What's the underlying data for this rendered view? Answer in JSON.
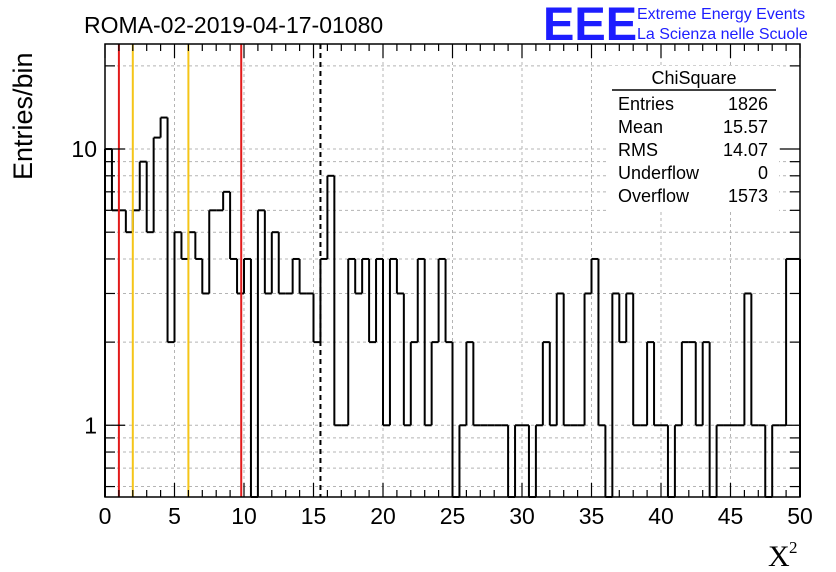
{
  "chart_data": {
    "type": "bar",
    "title": "ROMA-02-2019-04-17-01080",
    "xlabel": "X",
    "xlabel_superscript": "2",
    "ylabel": "Entries/bin",
    "xlim": [
      0,
      50
    ],
    "ylim": [
      0.55,
      24
    ],
    "yscale": "log",
    "grid": true,
    "x_ticks": [
      "0",
      "5",
      "10",
      "15",
      "20",
      "25",
      "30",
      "35",
      "40",
      "45",
      "50"
    ],
    "y_ticks": [
      {
        "value": 1,
        "label": "1"
      },
      {
        "value": 10,
        "label": "10"
      }
    ],
    "bin_width": 0.5,
    "bin_start": 0,
    "values": [
      10,
      6,
      5,
      6,
      9,
      6,
      5,
      6,
      8,
      9,
      6,
      5,
      6,
      11,
      7,
      4,
      5,
      6,
      4,
      5,
      6,
      7,
      5,
      4,
      4,
      6,
      6,
      5,
      4,
      6,
      5,
      4,
      4,
      3,
      3,
      5,
      2,
      4,
      6,
      5,
      4,
      4,
      2,
      0,
      3,
      6,
      3,
      3,
      5,
      6,
      3,
      3,
      4,
      3,
      3,
      3,
      3,
      2,
      4,
      2,
      2,
      4,
      4,
      3,
      1,
      1,
      1,
      1,
      4,
      3,
      2,
      1,
      4,
      1,
      2,
      5,
      2,
      1,
      1,
      0,
      4,
      2,
      0,
      0,
      3,
      1,
      0,
      0,
      2,
      1,
      2,
      1,
      1,
      0,
      1,
      1,
      1,
      0,
      0,
      1,
      2,
      1,
      1,
      1,
      1,
      1,
      1,
      2,
      1,
      1,
      2,
      1,
      2,
      1,
      1,
      2,
      3,
      1,
      2,
      0,
      3,
      0,
      1,
      1,
      3,
      2,
      3,
      1,
      2,
      1,
      0,
      1,
      1,
      1,
      1,
      2,
      1,
      0,
      0,
      1,
      2,
      1,
      1,
      2,
      1,
      2,
      1,
      2,
      1,
      3,
      2,
      1,
      2,
      1,
      1,
      2,
      1,
      1,
      0,
      0,
      1,
      1,
      1,
      1,
      1,
      1,
      2,
      2,
      3,
      1,
      2,
      0,
      3,
      1,
      1,
      0,
      1,
      1,
      1,
      3,
      1,
      2,
      1,
      0,
      1,
      2,
      1,
      1,
      2,
      2,
      1,
      1,
      2,
      3,
      1,
      3,
      1,
      1,
      4,
      1,
      1,
      2,
      3,
      2,
      1,
      3,
      1,
      1,
      0,
      2,
      1,
      1,
      0,
      1,
      2,
      1,
      2,
      1,
      0,
      1,
      0,
      1,
      0,
      3,
      2,
      2,
      2,
      2,
      1,
      0,
      0,
      1,
      1,
      0,
      1,
      0,
      0,
      1,
      0,
      1,
      2,
      1,
      0,
      1,
      0,
      3,
      1,
      1,
      2,
      1,
      0,
      3,
      0,
      0,
      1,
      1,
      0,
      1,
      3,
      0,
      0,
      1,
      1,
      0,
      1,
      0,
      1,
      0,
      0,
      0,
      0,
      0,
      1,
      0,
      1,
      0,
      1,
      0,
      0,
      1,
      0,
      1,
      0,
      0,
      1,
      0,
      0,
      1,
      1,
      0,
      0,
      1,
      1,
      0,
      0,
      0,
      1,
      0,
      1,
      0,
      0,
      0,
      1,
      1,
      0,
      1,
      0,
      0,
      1,
      0,
      0,
      0,
      0,
      0,
      0,
      0,
      1,
      1,
      1,
      0,
      1,
      0,
      0,
      0,
      0,
      0,
      1,
      0,
      1,
      0,
      1,
      0,
      0,
      0,
      0,
      0,
      0,
      0,
      0,
      0,
      1,
      0,
      0,
      0,
      0,
      1,
      0,
      0,
      0,
      0,
      0,
      1,
      0,
      1,
      0,
      0,
      0,
      0,
      0,
      1,
      1,
      0,
      0,
      1,
      0,
      0,
      0,
      1,
      0,
      0,
      0,
      0,
      0,
      0,
      0,
      0,
      0,
      0,
      0,
      0,
      1,
      0,
      0,
      1,
      1,
      0,
      1,
      0,
      0,
      0,
      0,
      0,
      0,
      0,
      1,
      0,
      0,
      0,
      0,
      1,
      1,
      0,
      0,
      0,
      0,
      0,
      0,
      0,
      1,
      0,
      0,
      0,
      1,
      0,
      1,
      0,
      0,
      0,
      0,
      0,
      0,
      0,
      0,
      0,
      0,
      0,
      0,
      1,
      1,
      0,
      0,
      1,
      0,
      0,
      0,
      0,
      0,
      1,
      0,
      0,
      0,
      0,
      0,
      0,
      1,
      0,
      0,
      0,
      0,
      0,
      1,
      0,
      0,
      0,
      0,
      0,
      0,
      0,
      0,
      0,
      0,
      1,
      0,
      0,
      0,
      0,
      0,
      0,
      0,
      0,
      0,
      1,
      0,
      0,
      0,
      0,
      0,
      0,
      0,
      0,
      0,
      0,
      0,
      1,
      0,
      0,
      0,
      0,
      0,
      0,
      0,
      0,
      0,
      0,
      0,
      0,
      0,
      0,
      0,
      0,
      0,
      1,
      0,
      0,
      0,
      0,
      0,
      0,
      0,
      0,
      0,
      0,
      0,
      1,
      0,
      0,
      0,
      0,
      0,
      0,
      0,
      1,
      0,
      0,
      0,
      0,
      0,
      0,
      0,
      0,
      0,
      0,
      0,
      0,
      0,
      0,
      0,
      0,
      0,
      0,
      0,
      0,
      0,
      0,
      0,
      0,
      0,
      1,
      0,
      0,
      0,
      0,
      0,
      0,
      0,
      0,
      0,
      0,
      0,
      0,
      0,
      0,
      0,
      0,
      0,
      0,
      0,
      0,
      0,
      1,
      0,
      0,
      0,
      0,
      0,
      0,
      0,
      0,
      0,
      0,
      0,
      0,
      0,
      0,
      0,
      0,
      0,
      0,
      0,
      0,
      0,
      0,
      0,
      0,
      0,
      0,
      0,
      0,
      0,
      0,
      0,
      0,
      0,
      0,
      0,
      0,
      0,
      0
    ],
    "vertical_lines": [
      {
        "x": 1.0,
        "color": "#e21a1a",
        "style": "solid"
      },
      {
        "x": 2.0,
        "color": "#f5c518",
        "style": "solid"
      },
      {
        "x": 6.0,
        "color": "#f5c518",
        "style": "solid"
      },
      {
        "x": 9.8,
        "color": "#e21a1a",
        "style": "solid"
      },
      {
        "x": 15.5,
        "color": "#000000",
        "style": "dashed"
      }
    ],
    "histogram_bins": [
      {
        "lo": 0.0,
        "hi": 0.5,
        "v": 10
      },
      {
        "lo": 0.5,
        "hi": 1.0,
        "v": 6
      },
      {
        "lo": 1.0,
        "hi": 1.5,
        "v": 6
      },
      {
        "lo": 1.5,
        "hi": 2.0,
        "v": 5
      },
      {
        "lo": 2.0,
        "hi": 2.5,
        "v": 6
      },
      {
        "lo": 2.5,
        "hi": 3.0,
        "v": 9
      },
      {
        "lo": 3.0,
        "hi": 3.5,
        "v": 5
      },
      {
        "lo": 3.5,
        "hi": 4.0,
        "v": 11
      },
      {
        "lo": 4.0,
        "hi": 4.5,
        "v": 13
      },
      {
        "lo": 4.5,
        "hi": 5.0,
        "v": 2
      },
      {
        "lo": 5.0,
        "hi": 5.5,
        "v": 5
      },
      {
        "lo": 5.5,
        "hi": 6.0,
        "v": 4
      },
      {
        "lo": 6.0,
        "hi": 6.5,
        "v": 5
      },
      {
        "lo": 6.5,
        "hi": 7.0,
        "v": 4
      },
      {
        "lo": 7.0,
        "hi": 7.5,
        "v": 3
      },
      {
        "lo": 7.5,
        "hi": 8.0,
        "v": 6
      },
      {
        "lo": 8.0,
        "hi": 8.5,
        "v": 6
      },
      {
        "lo": 8.5,
        "hi": 9.0,
        "v": 7
      },
      {
        "lo": 9.0,
        "hi": 9.5,
        "v": 4
      },
      {
        "lo": 9.5,
        "hi": 10.0,
        "v": 3
      },
      {
        "lo": 10.0,
        "hi": 10.5,
        "v": 4
      },
      {
        "lo": 10.5,
        "hi": 11.0,
        "v": 0
      },
      {
        "lo": 11.0,
        "hi": 11.5,
        "v": 6
      },
      {
        "lo": 11.5,
        "hi": 12.0,
        "v": 3
      },
      {
        "lo": 12.0,
        "hi": 12.5,
        "v": 5
      },
      {
        "lo": 12.5,
        "hi": 13.0,
        "v": 3
      },
      {
        "lo": 13.0,
        "hi": 13.5,
        "v": 3
      },
      {
        "lo": 13.5,
        "hi": 14.0,
        "v": 4
      },
      {
        "lo": 14.0,
        "hi": 14.5,
        "v": 3
      },
      {
        "lo": 14.5,
        "hi": 15.0,
        "v": 3
      },
      {
        "lo": 15.0,
        "hi": 15.5,
        "v": 2
      },
      {
        "lo": 15.5,
        "hi": 16.0,
        "v": 4
      },
      {
        "lo": 16.0,
        "hi": 16.5,
        "v": 8
      },
      {
        "lo": 16.5,
        "hi": 17.0,
        "v": 1
      },
      {
        "lo": 17.0,
        "hi": 17.5,
        "v": 1
      },
      {
        "lo": 17.5,
        "hi": 18.0,
        "v": 4
      },
      {
        "lo": 18.0,
        "hi": 18.5,
        "v": 3
      },
      {
        "lo": 18.5,
        "hi": 19.0,
        "v": 4
      },
      {
        "lo": 19.0,
        "hi": 19.5,
        "v": 2
      },
      {
        "lo": 19.5,
        "hi": 20.0,
        "v": 4
      },
      {
        "lo": 20.0,
        "hi": 20.5,
        "v": 1
      },
      {
        "lo": 20.5,
        "hi": 21.0,
        "v": 4
      },
      {
        "lo": 21.0,
        "hi": 21.5,
        "v": 3
      },
      {
        "lo": 21.5,
        "hi": 22.0,
        "v": 1
      },
      {
        "lo": 22.0,
        "hi": 22.5,
        "v": 2
      },
      {
        "lo": 22.5,
        "hi": 23.0,
        "v": 4
      },
      {
        "lo": 23.0,
        "hi": 23.5,
        "v": 1
      },
      {
        "lo": 23.5,
        "hi": 24.0,
        "v": 2
      },
      {
        "lo": 24.0,
        "hi": 24.5,
        "v": 4
      },
      {
        "lo": 24.5,
        "hi": 25.0,
        "v": 2
      },
      {
        "lo": 25.0,
        "hi": 25.5,
        "v": 0
      },
      {
        "lo": 25.5,
        "hi": 26.0,
        "v": 1
      },
      {
        "lo": 26.0,
        "hi": 26.5,
        "v": 2
      },
      {
        "lo": 26.5,
        "hi": 27.0,
        "v": 1
      },
      {
        "lo": 27.0,
        "hi": 27.5,
        "v": 1
      },
      {
        "lo": 27.5,
        "hi": 28.0,
        "v": 1
      },
      {
        "lo": 28.0,
        "hi": 28.5,
        "v": 1
      },
      {
        "lo": 28.5,
        "hi": 29.0,
        "v": 1
      },
      {
        "lo": 29.0,
        "hi": 29.5,
        "v": 0
      },
      {
        "lo": 29.5,
        "hi": 30.0,
        "v": 1
      },
      {
        "lo": 30.0,
        "hi": 30.5,
        "v": 1
      },
      {
        "lo": 30.5,
        "hi": 31.0,
        "v": 0
      },
      {
        "lo": 31.0,
        "hi": 31.5,
        "v": 1
      },
      {
        "lo": 31.5,
        "hi": 32.0,
        "v": 2
      },
      {
        "lo": 32.0,
        "hi": 32.5,
        "v": 1
      },
      {
        "lo": 32.5,
        "hi": 33.0,
        "v": 3
      },
      {
        "lo": 33.0,
        "hi": 33.5,
        "v": 1
      },
      {
        "lo": 33.5,
        "hi": 34.0,
        "v": 1
      },
      {
        "lo": 34.0,
        "hi": 34.5,
        "v": 1
      },
      {
        "lo": 34.5,
        "hi": 35.0,
        "v": 3
      },
      {
        "lo": 35.0,
        "hi": 35.5,
        "v": 4
      },
      {
        "lo": 35.5,
        "hi": 36.0,
        "v": 1
      },
      {
        "lo": 36.0,
        "hi": 36.5,
        "v": 0
      },
      {
        "lo": 36.5,
        "hi": 37.0,
        "v": 3
      },
      {
        "lo": 37.0,
        "hi": 37.5,
        "v": 2
      },
      {
        "lo": 37.5,
        "hi": 38.0,
        "v": 3
      },
      {
        "lo": 38.0,
        "hi": 38.5,
        "v": 1
      },
      {
        "lo": 38.5,
        "hi": 39.0,
        "v": 1
      },
      {
        "lo": 39.0,
        "hi": 39.5,
        "v": 2
      },
      {
        "lo": 39.5,
        "hi": 40.0,
        "v": 1
      },
      {
        "lo": 40.0,
        "hi": 40.5,
        "v": 1
      },
      {
        "lo": 40.5,
        "hi": 41.0,
        "v": 0
      },
      {
        "lo": 41.0,
        "hi": 41.5,
        "v": 1
      },
      {
        "lo": 41.5,
        "hi": 42.0,
        "v": 2
      },
      {
        "lo": 42.0,
        "hi": 42.5,
        "v": 2
      },
      {
        "lo": 42.5,
        "hi": 43.0,
        "v": 1
      },
      {
        "lo": 43.0,
        "hi": 43.5,
        "v": 2
      },
      {
        "lo": 43.5,
        "hi": 44.0,
        "v": 0
      },
      {
        "lo": 44.0,
        "hi": 44.5,
        "v": 1
      },
      {
        "lo": 44.5,
        "hi": 45.0,
        "v": 1
      },
      {
        "lo": 45.0,
        "hi": 45.5,
        "v": 1
      },
      {
        "lo": 45.5,
        "hi": 46.0,
        "v": 1
      },
      {
        "lo": 46.0,
        "hi": 46.5,
        "v": 3
      },
      {
        "lo": 46.5,
        "hi": 47.0,
        "v": 1
      },
      {
        "lo": 47.0,
        "hi": 47.5,
        "v": 1
      },
      {
        "lo": 47.5,
        "hi": 48.0,
        "v": 0
      },
      {
        "lo": 48.0,
        "hi": 48.5,
        "v": 1
      },
      {
        "lo": 48.5,
        "hi": 49.0,
        "v": 1
      },
      {
        "lo": 49.0,
        "hi": 50.0,
        "v": 4
      }
    ],
    "stats_box": {
      "title": "ChiSquare",
      "rows": [
        {
          "label": "Entries",
          "value": "1826"
        },
        {
          "label": "Mean",
          "value": "15.57"
        },
        {
          "label": "RMS",
          "value": "14.07"
        },
        {
          "label": "Underflow",
          "value": "0"
        },
        {
          "label": "Overflow",
          "value": "1573"
        }
      ]
    }
  },
  "logo": {
    "mark": "EEE",
    "line1": "Extreme Energy Events",
    "line2": "La Scienza nelle Scuole",
    "color": "#1d1dff"
  }
}
